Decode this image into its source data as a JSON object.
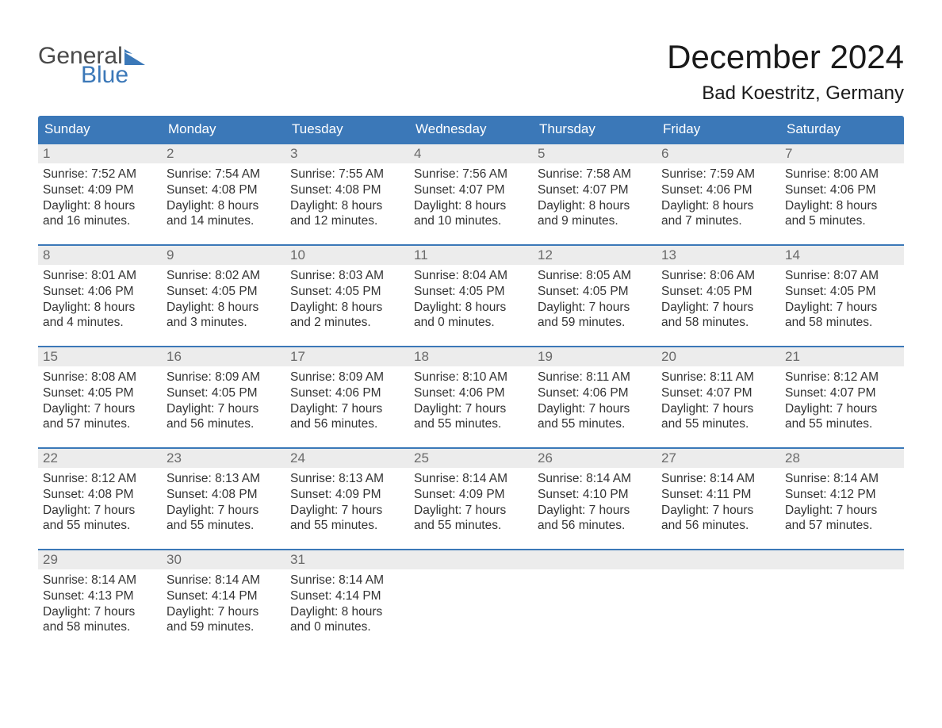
{
  "brand": {
    "word1": "General",
    "word2": "Blue",
    "word1_color": "#4a4a4a",
    "word2_color": "#3b78b8",
    "flag_color": "#3b78b8"
  },
  "title": "December 2024",
  "location": "Bad Koestritz, Germany",
  "colors": {
    "header_bg": "#3b78b8",
    "header_text": "#ffffff",
    "daynum_bg": "#ececec",
    "daynum_text": "#6a6a6a",
    "body_text": "#333333",
    "week_border": "#3b78b8",
    "page_bg": "#ffffff"
  },
  "typography": {
    "title_fontsize": 42,
    "location_fontsize": 24,
    "dow_fontsize": 17,
    "daynum_fontsize": 17,
    "body_fontsize": 15.5
  },
  "days_of_week": [
    "Sunday",
    "Monday",
    "Tuesday",
    "Wednesday",
    "Thursday",
    "Friday",
    "Saturday"
  ],
  "weeks": [
    [
      {
        "n": "1",
        "sunrise": "Sunrise: 7:52 AM",
        "sunset": "Sunset: 4:09 PM",
        "d1": "Daylight: 8 hours",
        "d2": "and 16 minutes."
      },
      {
        "n": "2",
        "sunrise": "Sunrise: 7:54 AM",
        "sunset": "Sunset: 4:08 PM",
        "d1": "Daylight: 8 hours",
        "d2": "and 14 minutes."
      },
      {
        "n": "3",
        "sunrise": "Sunrise: 7:55 AM",
        "sunset": "Sunset: 4:08 PM",
        "d1": "Daylight: 8 hours",
        "d2": "and 12 minutes."
      },
      {
        "n": "4",
        "sunrise": "Sunrise: 7:56 AM",
        "sunset": "Sunset: 4:07 PM",
        "d1": "Daylight: 8 hours",
        "d2": "and 10 minutes."
      },
      {
        "n": "5",
        "sunrise": "Sunrise: 7:58 AM",
        "sunset": "Sunset: 4:07 PM",
        "d1": "Daylight: 8 hours",
        "d2": "and 9 minutes."
      },
      {
        "n": "6",
        "sunrise": "Sunrise: 7:59 AM",
        "sunset": "Sunset: 4:06 PM",
        "d1": "Daylight: 8 hours",
        "d2": "and 7 minutes."
      },
      {
        "n": "7",
        "sunrise": "Sunrise: 8:00 AM",
        "sunset": "Sunset: 4:06 PM",
        "d1": "Daylight: 8 hours",
        "d2": "and 5 minutes."
      }
    ],
    [
      {
        "n": "8",
        "sunrise": "Sunrise: 8:01 AM",
        "sunset": "Sunset: 4:06 PM",
        "d1": "Daylight: 8 hours",
        "d2": "and 4 minutes."
      },
      {
        "n": "9",
        "sunrise": "Sunrise: 8:02 AM",
        "sunset": "Sunset: 4:05 PM",
        "d1": "Daylight: 8 hours",
        "d2": "and 3 minutes."
      },
      {
        "n": "10",
        "sunrise": "Sunrise: 8:03 AM",
        "sunset": "Sunset: 4:05 PM",
        "d1": "Daylight: 8 hours",
        "d2": "and 2 minutes."
      },
      {
        "n": "11",
        "sunrise": "Sunrise: 8:04 AM",
        "sunset": "Sunset: 4:05 PM",
        "d1": "Daylight: 8 hours",
        "d2": "and 0 minutes."
      },
      {
        "n": "12",
        "sunrise": "Sunrise: 8:05 AM",
        "sunset": "Sunset: 4:05 PM",
        "d1": "Daylight: 7 hours",
        "d2": "and 59 minutes."
      },
      {
        "n": "13",
        "sunrise": "Sunrise: 8:06 AM",
        "sunset": "Sunset: 4:05 PM",
        "d1": "Daylight: 7 hours",
        "d2": "and 58 minutes."
      },
      {
        "n": "14",
        "sunrise": "Sunrise: 8:07 AM",
        "sunset": "Sunset: 4:05 PM",
        "d1": "Daylight: 7 hours",
        "d2": "and 58 minutes."
      }
    ],
    [
      {
        "n": "15",
        "sunrise": "Sunrise: 8:08 AM",
        "sunset": "Sunset: 4:05 PM",
        "d1": "Daylight: 7 hours",
        "d2": "and 57 minutes."
      },
      {
        "n": "16",
        "sunrise": "Sunrise: 8:09 AM",
        "sunset": "Sunset: 4:05 PM",
        "d1": "Daylight: 7 hours",
        "d2": "and 56 minutes."
      },
      {
        "n": "17",
        "sunrise": "Sunrise: 8:09 AM",
        "sunset": "Sunset: 4:06 PM",
        "d1": "Daylight: 7 hours",
        "d2": "and 56 minutes."
      },
      {
        "n": "18",
        "sunrise": "Sunrise: 8:10 AM",
        "sunset": "Sunset: 4:06 PM",
        "d1": "Daylight: 7 hours",
        "d2": "and 55 minutes."
      },
      {
        "n": "19",
        "sunrise": "Sunrise: 8:11 AM",
        "sunset": "Sunset: 4:06 PM",
        "d1": "Daylight: 7 hours",
        "d2": "and 55 minutes."
      },
      {
        "n": "20",
        "sunrise": "Sunrise: 8:11 AM",
        "sunset": "Sunset: 4:07 PM",
        "d1": "Daylight: 7 hours",
        "d2": "and 55 minutes."
      },
      {
        "n": "21",
        "sunrise": "Sunrise: 8:12 AM",
        "sunset": "Sunset: 4:07 PM",
        "d1": "Daylight: 7 hours",
        "d2": "and 55 minutes."
      }
    ],
    [
      {
        "n": "22",
        "sunrise": "Sunrise: 8:12 AM",
        "sunset": "Sunset: 4:08 PM",
        "d1": "Daylight: 7 hours",
        "d2": "and 55 minutes."
      },
      {
        "n": "23",
        "sunrise": "Sunrise: 8:13 AM",
        "sunset": "Sunset: 4:08 PM",
        "d1": "Daylight: 7 hours",
        "d2": "and 55 minutes."
      },
      {
        "n": "24",
        "sunrise": "Sunrise: 8:13 AM",
        "sunset": "Sunset: 4:09 PM",
        "d1": "Daylight: 7 hours",
        "d2": "and 55 minutes."
      },
      {
        "n": "25",
        "sunrise": "Sunrise: 8:14 AM",
        "sunset": "Sunset: 4:09 PM",
        "d1": "Daylight: 7 hours",
        "d2": "and 55 minutes."
      },
      {
        "n": "26",
        "sunrise": "Sunrise: 8:14 AM",
        "sunset": "Sunset: 4:10 PM",
        "d1": "Daylight: 7 hours",
        "d2": "and 56 minutes."
      },
      {
        "n": "27",
        "sunrise": "Sunrise: 8:14 AM",
        "sunset": "Sunset: 4:11 PM",
        "d1": "Daylight: 7 hours",
        "d2": "and 56 minutes."
      },
      {
        "n": "28",
        "sunrise": "Sunrise: 8:14 AM",
        "sunset": "Sunset: 4:12 PM",
        "d1": "Daylight: 7 hours",
        "d2": "and 57 minutes."
      }
    ],
    [
      {
        "n": "29",
        "sunrise": "Sunrise: 8:14 AM",
        "sunset": "Sunset: 4:13 PM",
        "d1": "Daylight: 7 hours",
        "d2": "and 58 minutes."
      },
      {
        "n": "30",
        "sunrise": "Sunrise: 8:14 AM",
        "sunset": "Sunset: 4:14 PM",
        "d1": "Daylight: 7 hours",
        "d2": "and 59 minutes."
      },
      {
        "n": "31",
        "sunrise": "Sunrise: 8:14 AM",
        "sunset": "Sunset: 4:14 PM",
        "d1": "Daylight: 8 hours",
        "d2": "and 0 minutes."
      },
      {
        "empty": true
      },
      {
        "empty": true
      },
      {
        "empty": true
      },
      {
        "empty": true
      }
    ]
  ]
}
